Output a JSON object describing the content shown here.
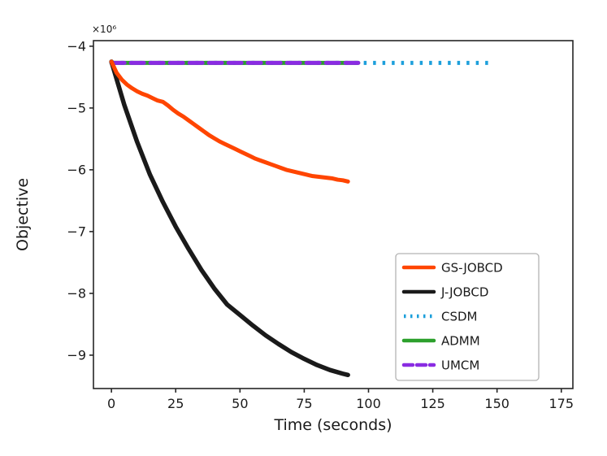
{
  "chart_data": {
    "type": "line",
    "title": "",
    "xlabel": "Time (seconds)",
    "ylabel": "Objective",
    "offset_text": "×10⁶",
    "y_unit_multiplier": 1000000,
    "xlim": [
      -7,
      179.5
    ],
    "ylim_millions": [
      -9.54,
      -3.91
    ],
    "xticks": [
      0,
      25,
      50,
      75,
      100,
      125,
      150,
      175
    ],
    "xtick_labels": [
      "0",
      "25",
      "50",
      "75",
      "100",
      "125",
      "150",
      "175"
    ],
    "yticks_millions": [
      -4,
      -5,
      -6,
      -7,
      -8,
      -9
    ],
    "ytick_labels": [
      "−4",
      "−5",
      "−6",
      "−7",
      "−8",
      "−9"
    ],
    "grid": false,
    "legend": {
      "position": "lower right",
      "entries": [
        "GS-JOBCD",
        "J-JOBCD",
        "CSDM",
        "ADMM",
        "UMCM"
      ]
    },
    "series": [
      {
        "name": "CSDM",
        "color": "#1C9FDB",
        "line_style": "dotted",
        "line_width": 5,
        "x": [
          0,
          147
        ],
        "y_millions": [
          -4.27,
          -4.27
        ]
      },
      {
        "name": "ADMM",
        "color": "#2CA02C",
        "line_style": "solid",
        "line_width": 5,
        "x": [
          0,
          96
        ],
        "y_millions": [
          -4.27,
          -4.27
        ]
      },
      {
        "name": "UMCM",
        "color": "#8A2BE2",
        "line_style": "dashed",
        "line_width": 5,
        "x": [
          0,
          96
        ],
        "y_millions": [
          -4.27,
          -4.27
        ]
      },
      {
        "name": "J-JOBCD",
        "color": "#1A1A1A",
        "line_style": "solid",
        "line_width": 5.5,
        "x": [
          0,
          5,
          10,
          15,
          20,
          25,
          30,
          35,
          40,
          45,
          50,
          55,
          60,
          65,
          70,
          75,
          80,
          85,
          90,
          92
        ],
        "y_millions": [
          -4.25,
          -4.95,
          -5.55,
          -6.08,
          -6.52,
          -6.92,
          -7.28,
          -7.62,
          -7.92,
          -8.18,
          -8.35,
          -8.52,
          -8.68,
          -8.82,
          -8.95,
          -9.06,
          -9.16,
          -9.24,
          -9.3,
          -9.32
        ]
      },
      {
        "name": "GS-JOBCD",
        "color": "#FF4500",
        "line_style": "solid",
        "line_width": 5,
        "x": [
          0,
          2,
          4,
          6,
          8,
          10,
          12,
          14,
          16,
          18,
          20,
          22,
          24,
          26,
          28,
          30,
          32,
          34,
          36,
          38,
          40,
          42,
          44,
          46,
          48,
          50,
          52,
          54,
          56,
          58,
          60,
          62,
          64,
          66,
          68,
          70,
          72,
          74,
          76,
          78,
          80,
          82,
          84,
          86,
          88,
          90,
          92
        ],
        "y_millions": [
          -4.25,
          -4.43,
          -4.54,
          -4.62,
          -4.68,
          -4.73,
          -4.77,
          -4.8,
          -4.84,
          -4.88,
          -4.9,
          -4.96,
          -5.03,
          -5.09,
          -5.14,
          -5.2,
          -5.26,
          -5.32,
          -5.38,
          -5.44,
          -5.49,
          -5.54,
          -5.58,
          -5.62,
          -5.66,
          -5.7,
          -5.74,
          -5.78,
          -5.82,
          -5.85,
          -5.88,
          -5.91,
          -5.94,
          -5.97,
          -6.0,
          -6.02,
          -6.04,
          -6.06,
          -6.08,
          -6.1,
          -6.11,
          -6.12,
          -6.13,
          -6.14,
          -6.16,
          -6.17,
          -6.19
        ]
      }
    ]
  }
}
